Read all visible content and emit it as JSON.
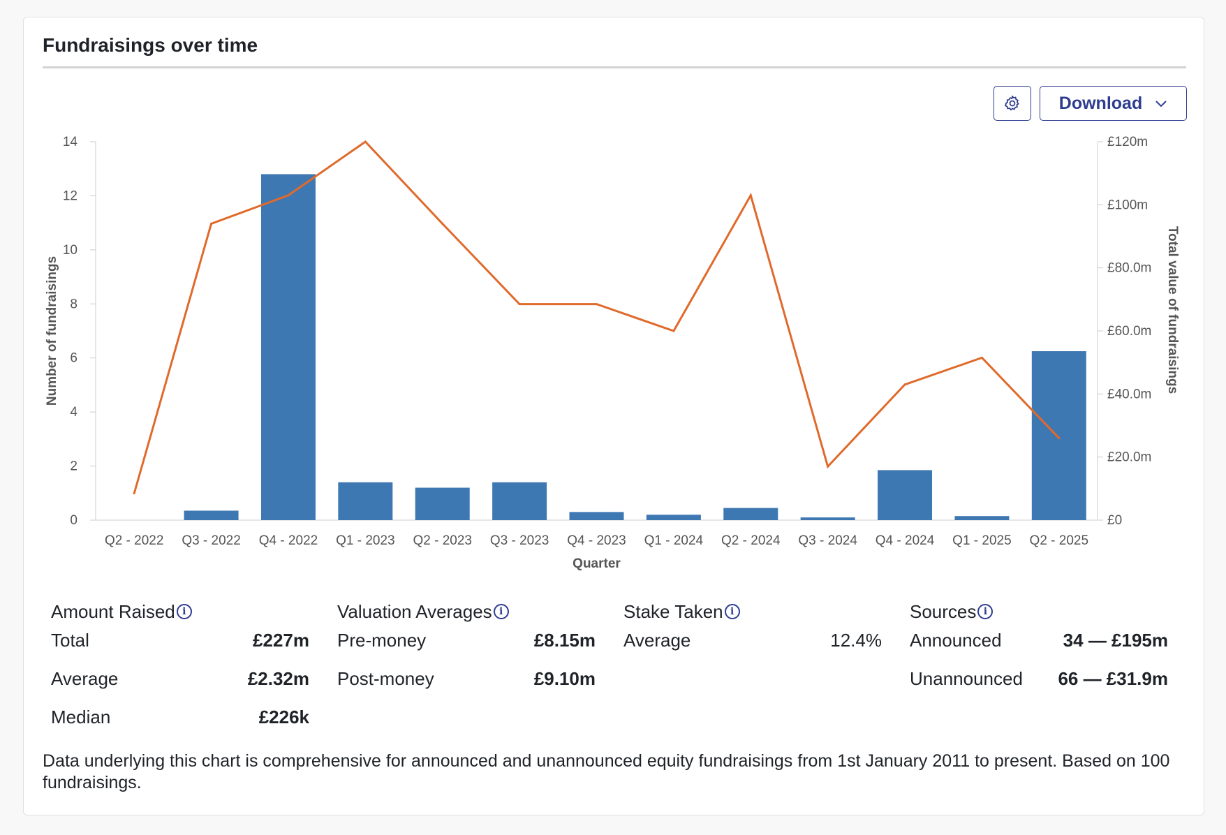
{
  "card": {
    "title": "Fundraisings over time",
    "download_label": "Download",
    "settings_icon": "gear-icon",
    "download_icon": "chevron-down-icon",
    "accent_color": "#2e3d8f"
  },
  "chart_data": {
    "type": "bar",
    "xlabel": "Quarter",
    "ylabel": "Number of fundraisings",
    "y2label": "Total value of fundraisings",
    "categories": [
      "Q2 - 2022",
      "Q3 - 2022",
      "Q4 - 2022",
      "Q1 - 2023",
      "Q2 - 2023",
      "Q3 - 2023",
      "Q4 - 2023",
      "Q1 - 2024",
      "Q2 - 2024",
      "Q3 - 2024",
      "Q4 - 2024",
      "Q1 - 2025",
      "Q2 - 2025"
    ],
    "series": [
      {
        "type": "bar",
        "axis": "left",
        "color": "#3e78b2",
        "values": [
          0,
          0.35,
          12.8,
          1.4,
          1.2,
          1.4,
          0.3,
          0.2,
          0.45,
          0.1,
          1.85,
          0.15,
          6.25
        ]
      },
      {
        "type": "line",
        "axis": "right",
        "color": "#e06a2b",
        "values": [
          8.5,
          94,
          103,
          120,
          94,
          68.5,
          68.5,
          60,
          103,
          17,
          43,
          51.5,
          26
        ]
      }
    ],
    "ylim": [
      0,
      14
    ],
    "y2lim": [
      0,
      120
    ],
    "yticks": [
      0,
      2,
      4,
      6,
      8,
      10,
      12,
      14
    ],
    "y2ticks": [
      {
        "value": 0,
        "label": "£0"
      },
      {
        "value": 20,
        "label": "£20.0m"
      },
      {
        "value": 40,
        "label": "£40.0m"
      },
      {
        "value": 60,
        "label": "£60.0m"
      },
      {
        "value": 80,
        "label": "£80.0m"
      },
      {
        "value": 100,
        "label": "£100m"
      },
      {
        "value": 120,
        "label": "£120m"
      }
    ],
    "grid": false,
    "legend": "none"
  },
  "stats": {
    "amount_raised": {
      "title": "Amount Raised",
      "rows": [
        {
          "label": "Total",
          "value": "£227m"
        },
        {
          "label": "Average",
          "value": "£2.32m"
        },
        {
          "label": "Median",
          "value": "£226k"
        }
      ]
    },
    "valuation": {
      "title": "Valuation Averages",
      "rows": [
        {
          "label": "Pre-money",
          "value": "£8.15m"
        },
        {
          "label": "Post-money",
          "value": "£9.10m"
        }
      ]
    },
    "stake": {
      "title": "Stake Taken",
      "rows": [
        {
          "label": "Average",
          "value": "12.4%"
        }
      ]
    },
    "sources": {
      "title": "Sources",
      "rows": [
        {
          "label": "Announced",
          "value": "34 — £195m"
        },
        {
          "label": "Unannounced",
          "value": "66 — £31.9m"
        }
      ]
    },
    "info_icon": "info-icon"
  },
  "footnote": "Data underlying this chart is comprehensive for announced and unannounced equity fundraisings from 1st January 2011 to present. Based on 100 fundraisings."
}
